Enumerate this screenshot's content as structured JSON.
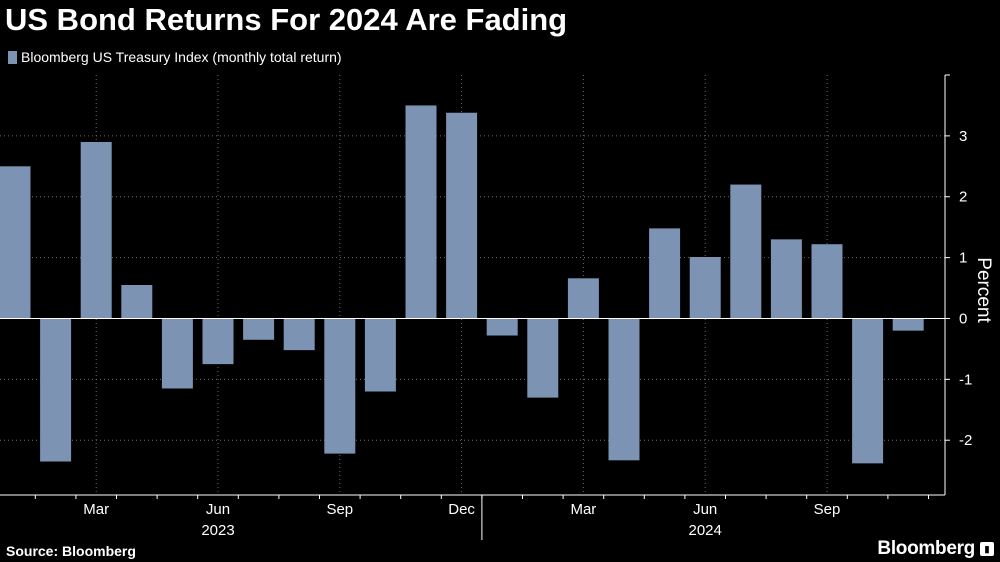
{
  "title": "US Bond Returns For 2024 Are Fading",
  "legend": {
    "label": "Bloomberg US Treasury Index (monthly total return)"
  },
  "source": "Source: Bloomberg",
  "brand": "Bloomberg",
  "colors": {
    "bar": "#7c93b4",
    "background": "#000000",
    "grid": "#6a6a6a",
    "text": "#ffffff"
  },
  "chart_data": {
    "type": "bar",
    "title": "US Bond Returns For 2024 Are Fading",
    "series_name": "Bloomberg US Treasury Index (monthly total return)",
    "ylabel": "Percent",
    "ylim": [
      -2.9,
      4.0
    ],
    "yticks": [
      -2,
      -1,
      0,
      1,
      2,
      3
    ],
    "months": [
      "2023-01",
      "2023-02",
      "2023-03",
      "2023-04",
      "2023-05",
      "2023-06",
      "2023-07",
      "2023-08",
      "2023-09",
      "2023-10",
      "2023-11",
      "2023-12",
      "2024-01",
      "2024-02",
      "2024-03",
      "2024-04",
      "2024-05",
      "2024-06",
      "2024-07",
      "2024-08",
      "2024-09",
      "2024-10",
      "2024-11"
    ],
    "values": [
      2.5,
      -2.35,
      2.9,
      0.55,
      -1.15,
      -0.75,
      -0.35,
      -0.52,
      -2.22,
      -1.2,
      3.5,
      3.38,
      -0.28,
      -1.3,
      0.66,
      -2.33,
      1.48,
      1.01,
      2.2,
      1.3,
      1.22,
      -2.38,
      -0.2
    ],
    "x_tick_labels": [
      {
        "label": "Mar",
        "index": 2
      },
      {
        "label": "Jun",
        "index": 5
      },
      {
        "label": "Sep",
        "index": 8
      },
      {
        "label": "Dec",
        "index": 11
      },
      {
        "label": "Mar",
        "index": 14
      },
      {
        "label": "Jun",
        "index": 17
      },
      {
        "label": "Sep",
        "index": 20
      }
    ],
    "year_labels": [
      {
        "label": "2023",
        "index": 5
      },
      {
        "label": "2024",
        "index": 17
      }
    ]
  }
}
